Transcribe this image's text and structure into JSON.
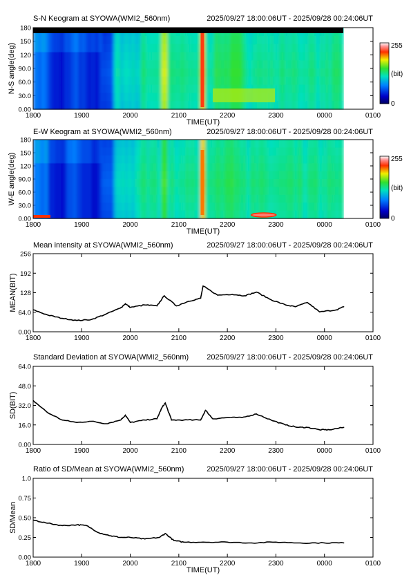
{
  "chart_data": [
    {
      "type": "heatmap",
      "title": "S-N Keogram at SYOWA(WMI2_560nm)",
      "time_range": "2025/09/27 18:00:06UT - 2025/09/28 00:24:06UT",
      "xlabel": "TIME(UT)",
      "ylabel": "N-S angle(deg)",
      "x_ticks": [
        "1800",
        "1900",
        "2000",
        "2100",
        "2200",
        "2300",
        "0000",
        "0100"
      ],
      "y_ticks": [
        "0.00",
        "30.0",
        "60.0",
        "90.0",
        "120",
        "150",
        "180"
      ],
      "ylim": [
        0,
        180
      ],
      "colorbar": {
        "max_label": "255",
        "min_label": "0",
        "unit_label": "(bit)"
      },
      "colors": {
        "low": "#1c2fbe",
        "mid": "#2fd26e",
        "high": "#e0e82a",
        "peak": "#e8301c"
      }
    },
    {
      "type": "heatmap",
      "title": "E-W Keogram at SYOWA(WMI2_560nm)",
      "time_range": "2025/09/27 18:00:06UT - 2025/09/28 00:24:06UT",
      "xlabel": "TIME(UT)",
      "ylabel": "W-E angle(deg)",
      "x_ticks": [
        "1800",
        "1900",
        "2000",
        "2100",
        "2200",
        "2300",
        "0000",
        "0100"
      ],
      "y_ticks": [
        "0.00",
        "30.0",
        "60.0",
        "90.0",
        "120",
        "150",
        "180"
      ],
      "ylim": [
        0,
        180
      ],
      "colorbar": {
        "max_label": "255",
        "min_label": "0",
        "unit_label": "(bit)"
      }
    },
    {
      "type": "line",
      "title": "Mean intensity at SYOWA(WMI2_560nm)",
      "time_range": "2025/09/27 18:00:06UT - 2025/09/28 00:24:06UT",
      "xlabel": "",
      "ylabel": "MEAN(BIT)",
      "x_ticks": [
        "1800",
        "1900",
        "2000",
        "2100",
        "2200",
        "2300",
        "0000",
        "0100"
      ],
      "y_ticks": [
        "0.00",
        "64.0",
        "128",
        "192",
        "256"
      ],
      "ylim": [
        0,
        256
      ],
      "x_hours": [
        0,
        0.3,
        0.6,
        0.9,
        1.2,
        1.5,
        1.8,
        1.9,
        2.0,
        2.3,
        2.55,
        2.7,
        2.95,
        3.2,
        3.45,
        3.5,
        3.8,
        4.1,
        4.35,
        4.6,
        4.9,
        5.2,
        5.4,
        5.65,
        5.9,
        6.25,
        6.4
      ],
      "values": [
        72,
        55,
        44,
        37,
        40,
        58,
        78,
        92,
        80,
        88,
        85,
        118,
        85,
        100,
        110,
        150,
        120,
        123,
        118,
        130,
        105,
        88,
        82,
        96,
        65,
        72,
        82
      ]
    },
    {
      "type": "line",
      "title": "Standard Deviation at SYOWA(WMI2_560nm)",
      "time_range": "2025/09/27 18:00:06UT - 2025/09/28 00:24:06UT",
      "xlabel": "",
      "ylabel": "SD(BIT)",
      "x_ticks": [
        "1800",
        "1900",
        "2000",
        "2100",
        "2200",
        "2300",
        "0000",
        "0100"
      ],
      "y_ticks": [
        "0.00",
        "16.0",
        "32.0",
        "48.0",
        "64.0"
      ],
      "ylim": [
        0,
        64
      ],
      "x_hours": [
        0,
        0.3,
        0.6,
        0.9,
        1.2,
        1.5,
        1.8,
        1.9,
        2.0,
        2.3,
        2.55,
        2.65,
        2.72,
        2.85,
        3.1,
        3.45,
        3.55,
        3.7,
        4.0,
        4.3,
        4.6,
        4.9,
        5.2,
        5.45,
        5.65,
        5.9,
        6.1,
        6.4
      ],
      "values": [
        36,
        26,
        20,
        18,
        19,
        17,
        20,
        24,
        18,
        20,
        21,
        30,
        34,
        20,
        20,
        20,
        28,
        21,
        22,
        22,
        25,
        20,
        16,
        14,
        14,
        12,
        12,
        14
      ]
    },
    {
      "type": "line",
      "title": "Ratio of SD/Mean at SYOWA(WMI2_560nm)",
      "time_range": "2025/09/27 18:00:06UT - 2025/09/28 00:24:06UT",
      "xlabel": "TIME(UT)",
      "ylabel": "SD/Mean",
      "x_ticks": [
        "1800",
        "1900",
        "2000",
        "2100",
        "2200",
        "2300",
        "0000",
        "0100"
      ],
      "y_ticks": [
        "0.00",
        "0.25",
        "0.50",
        "0.75",
        "1.0"
      ],
      "ylim": [
        0,
        1.0
      ],
      "x_hours": [
        0,
        0.3,
        0.6,
        0.9,
        1.1,
        1.35,
        1.6,
        1.8,
        2.0,
        2.3,
        2.6,
        2.72,
        2.9,
        3.1,
        3.5,
        4.0,
        4.5,
        5.0,
        5.5,
        6.0,
        6.4
      ],
      "values": [
        0.47,
        0.43,
        0.4,
        0.41,
        0.4,
        0.31,
        0.27,
        0.25,
        0.25,
        0.23,
        0.25,
        0.3,
        0.21,
        0.19,
        0.19,
        0.19,
        0.18,
        0.19,
        0.18,
        0.18,
        0.18
      ]
    }
  ]
}
